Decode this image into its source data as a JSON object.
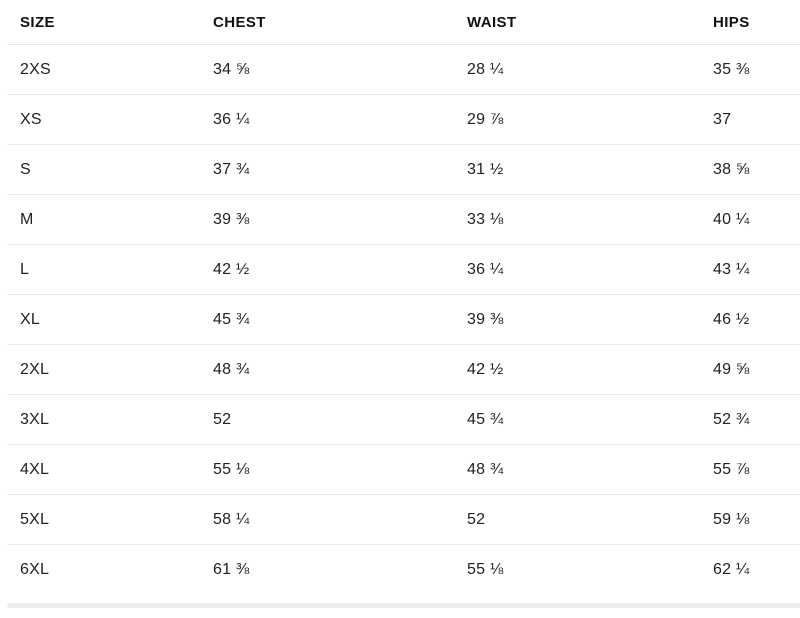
{
  "table": {
    "columns": [
      "SIZE",
      "CHEST",
      "WAIST",
      "HIPS"
    ],
    "rows": [
      [
        "2XS",
        "34 ⅝",
        "28 ¼",
        "35 ⅜"
      ],
      [
        "XS",
        "36 ¼",
        "29 ⅞",
        "37"
      ],
      [
        "S",
        "37 ¾",
        "31 ½",
        "38 ⅝"
      ],
      [
        "M",
        "39 ⅜",
        "33 ⅛",
        "40 ¼"
      ],
      [
        "L",
        "42 ½",
        "36 ¼",
        "43 ¼"
      ],
      [
        "XL",
        "45 ¾",
        "39 ⅜",
        "46 ½"
      ],
      [
        "2XL",
        "48 ¾",
        "42 ½",
        "49 ⅝"
      ],
      [
        "3XL",
        "52",
        "45 ¾",
        "52 ¾"
      ],
      [
        "4XL",
        "55 ⅛",
        "48 ¾",
        "55 ⅞"
      ],
      [
        "5XL",
        "58 ¼",
        "52",
        "59 ⅛"
      ],
      [
        "6XL",
        "61 ⅜",
        "55 ⅛",
        "62 ¼"
      ]
    ]
  },
  "colors": {
    "background": "#ffffff",
    "header_text": "#111111",
    "cell_text": "#222222",
    "divider": "#ebebeb",
    "scrollbar_track": "#ececec"
  }
}
